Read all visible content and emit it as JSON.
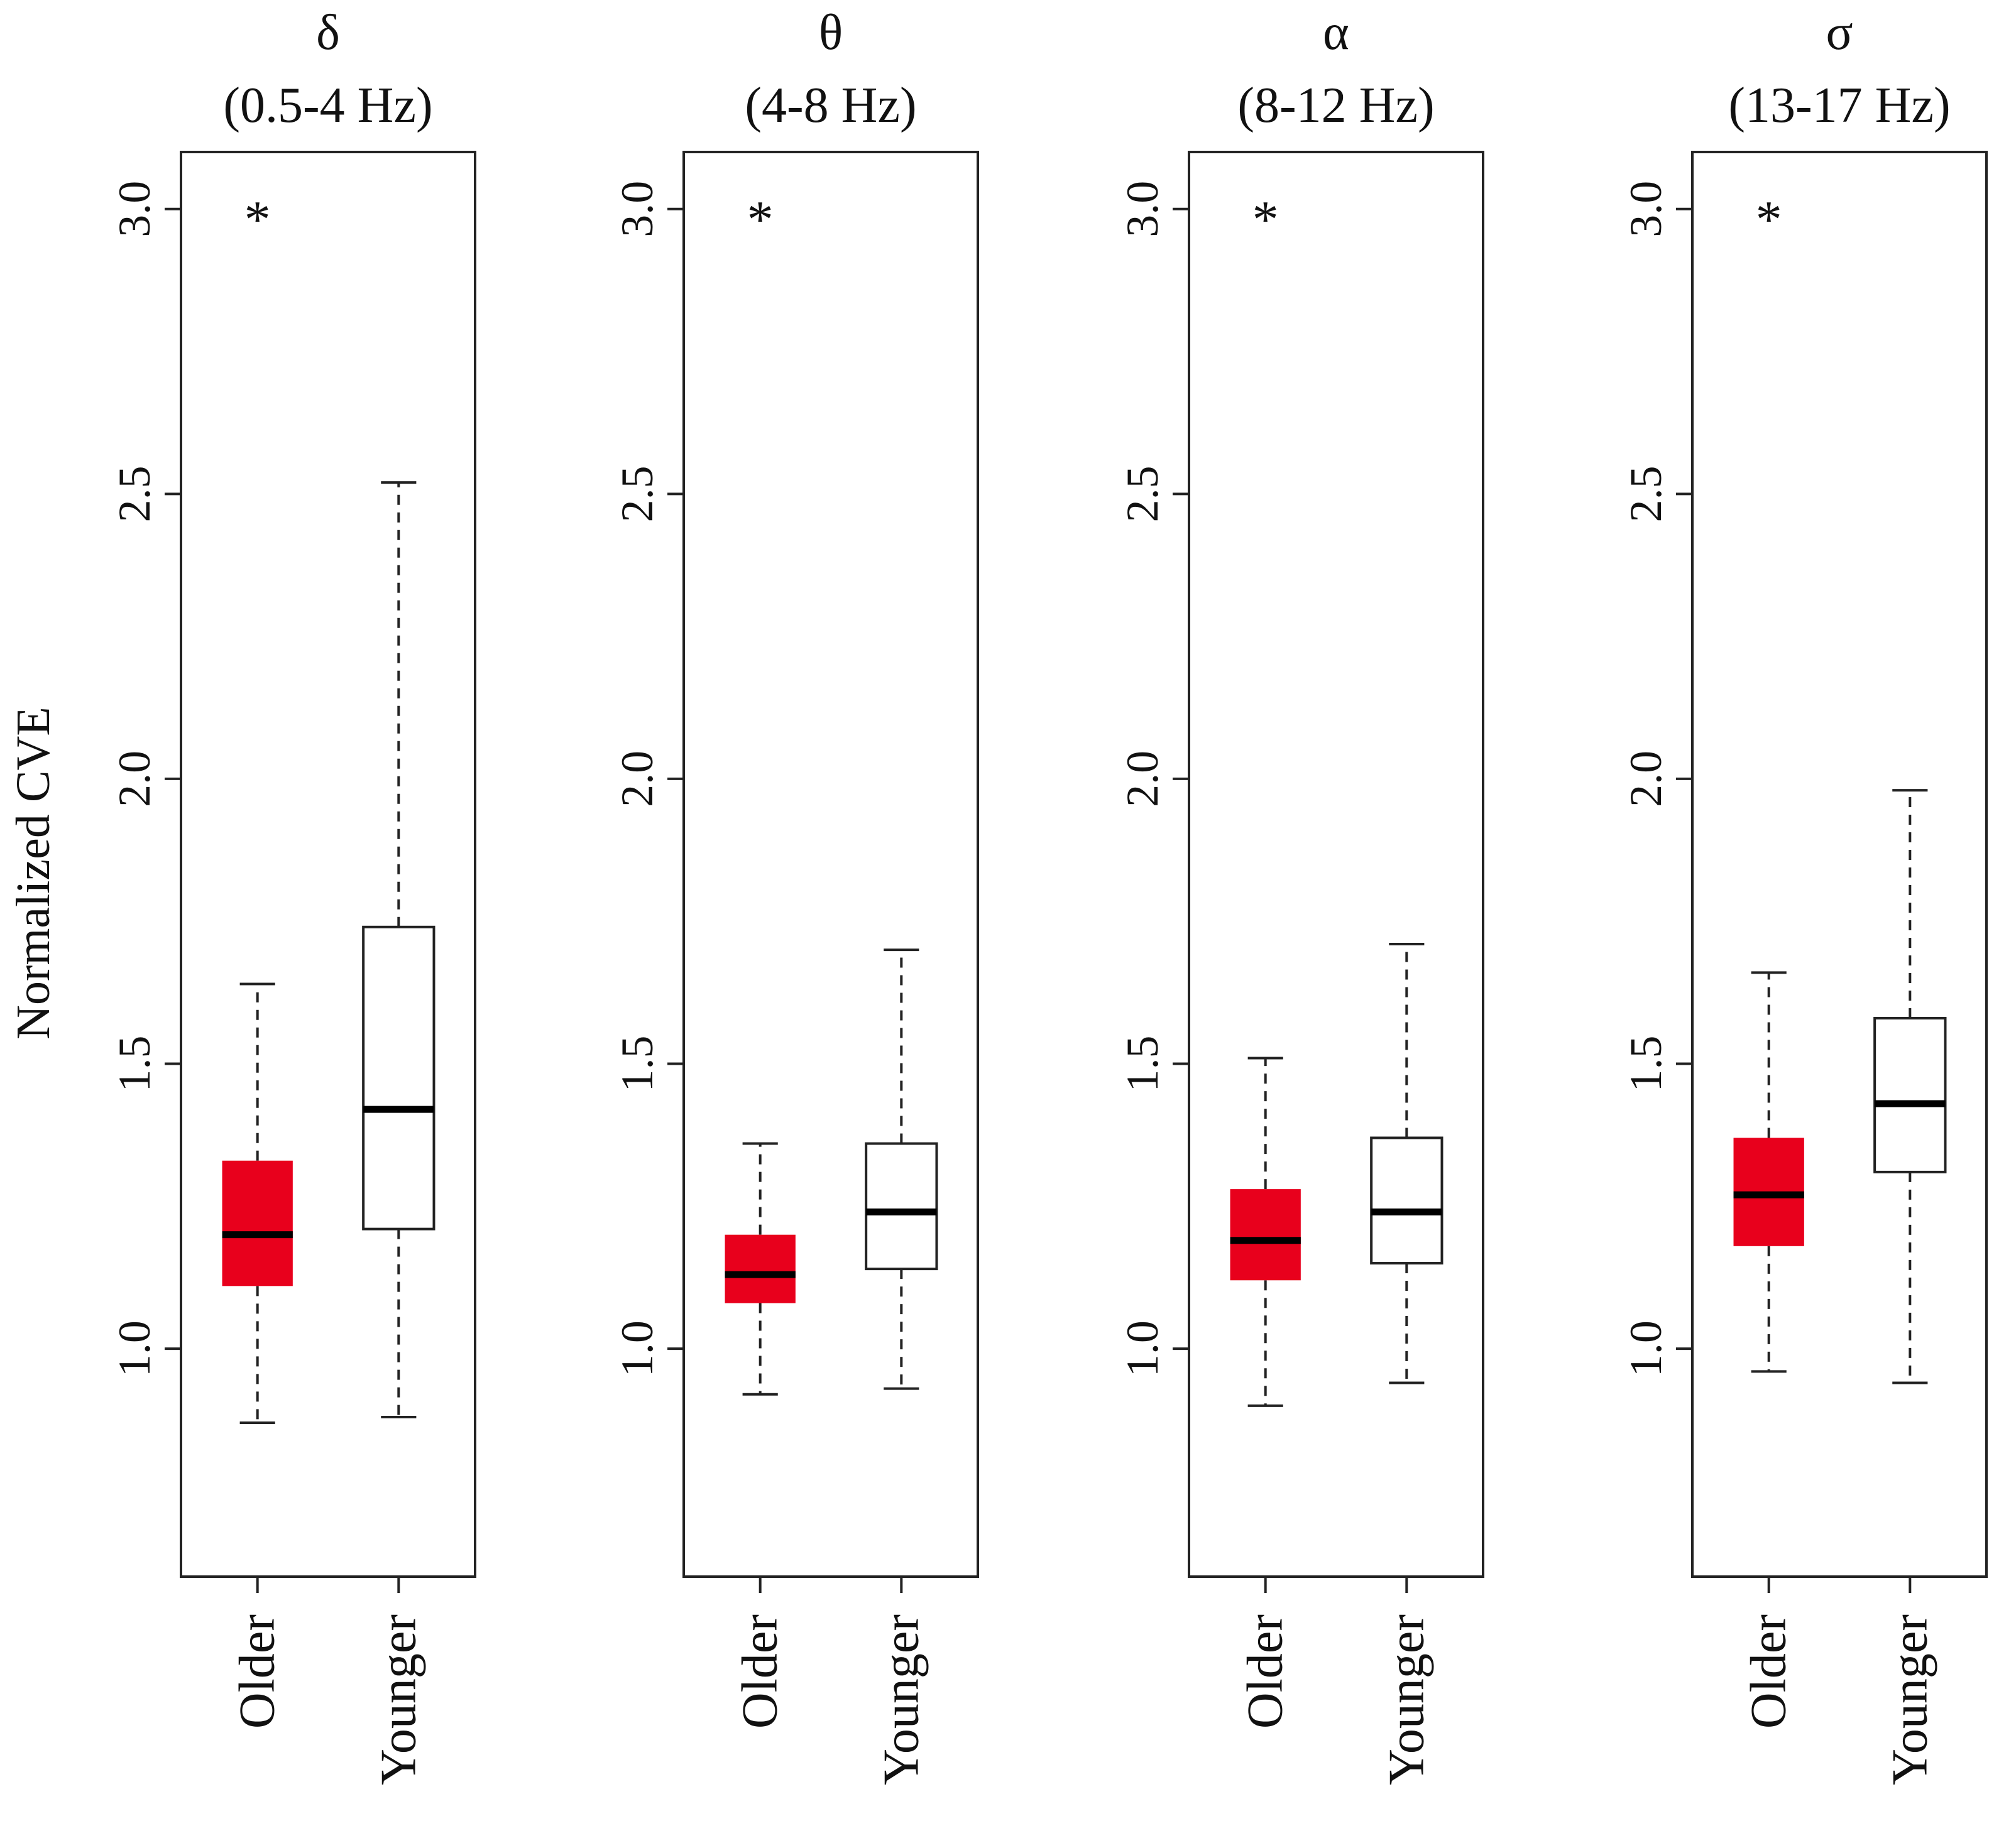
{
  "chart_data": {
    "type": "boxplot",
    "ylabel": "Normalized CVE",
    "ylim": [
      0.6,
      3.1
    ],
    "yticks": [
      "1.0",
      "1.5",
      "2.0",
      "2.5",
      "3.0"
    ],
    "ytick_values": [
      1.0,
      1.5,
      2.0,
      2.5,
      3.0
    ],
    "categories": [
      "Older",
      "Younger"
    ],
    "colors": {
      "Older": "#e8001c",
      "Younger": "#ffffff"
    },
    "panels": [
      {
        "symbol": "δ",
        "range": "(0.5-4 Hz)",
        "significance": "*",
        "groups": [
          {
            "name": "Older",
            "min": 0.87,
            "q1": 1.11,
            "median": 1.2,
            "q3": 1.33,
            "max": 1.64
          },
          {
            "name": "Younger",
            "min": 0.88,
            "q1": 1.21,
            "median": 1.42,
            "q3": 1.74,
            "max": 2.52
          }
        ]
      },
      {
        "symbol": "θ",
        "range": "(4-8 Hz)",
        "significance": "*",
        "groups": [
          {
            "name": "Older",
            "min": 0.92,
            "q1": 1.08,
            "median": 1.13,
            "q3": 1.2,
            "max": 1.36
          },
          {
            "name": "Younger",
            "min": 0.93,
            "q1": 1.14,
            "median": 1.24,
            "q3": 1.36,
            "max": 1.7
          }
        ]
      },
      {
        "symbol": "α",
        "range": "(8-12 Hz)",
        "significance": "*",
        "groups": [
          {
            "name": "Older",
            "min": 0.9,
            "q1": 1.12,
            "median": 1.19,
            "q3": 1.28,
            "max": 1.51
          },
          {
            "name": "Younger",
            "min": 0.94,
            "q1": 1.15,
            "median": 1.24,
            "q3": 1.37,
            "max": 1.71
          }
        ]
      },
      {
        "symbol": "σ",
        "range": "(13-17 Hz)",
        "significance": "*",
        "groups": [
          {
            "name": "Older",
            "min": 0.96,
            "q1": 1.18,
            "median": 1.27,
            "q3": 1.37,
            "max": 1.66
          },
          {
            "name": "Younger",
            "min": 0.94,
            "q1": 1.31,
            "median": 1.43,
            "q3": 1.58,
            "max": 1.98
          }
        ]
      }
    ]
  }
}
